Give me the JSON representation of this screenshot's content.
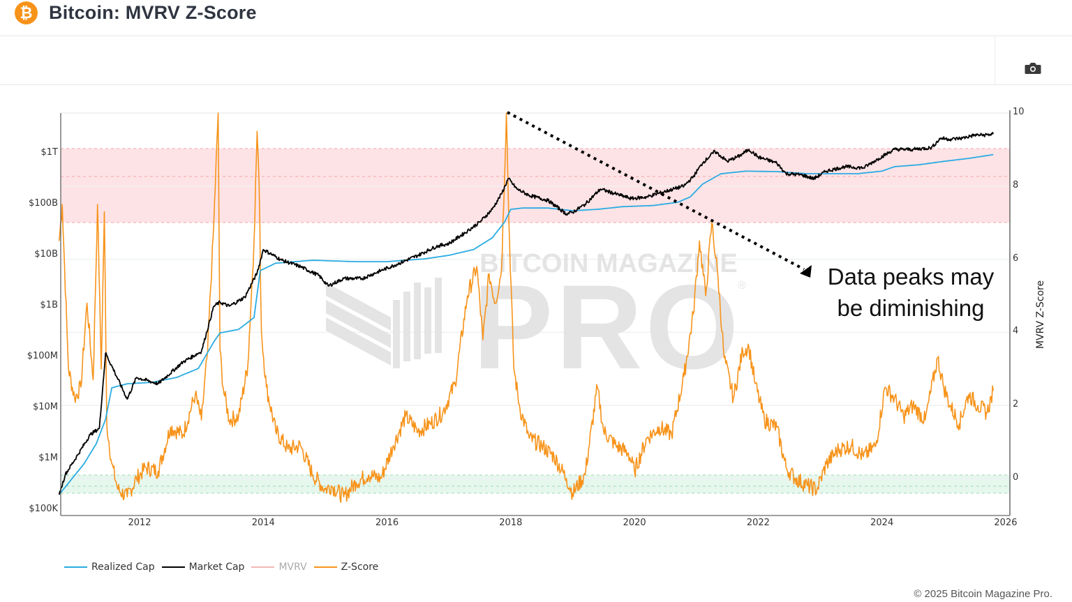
{
  "header": {
    "logo_glyph": "₿",
    "title": "Bitcoin: MVRV Z-Score"
  },
  "toolbar": {
    "screenshot_button": "camera-icon"
  },
  "annotation": {
    "line1": "Data peaks may",
    "line2": "be diminishing"
  },
  "watermark": {
    "line1": "BITCOIN MAGAZINE",
    "line2": "PRO",
    "registered": "®"
  },
  "legend": [
    {
      "label": "Realized Cap",
      "color": "#29abe2"
    },
    {
      "label": "Market Cap",
      "color": "#000000"
    },
    {
      "label": "MVRV",
      "color": "#f4a6a6"
    },
    {
      "label": "Z-Score",
      "color": "#f7931a"
    }
  ],
  "footer": {
    "copyright": "© 2025 Bitcoin Magazine Pro."
  },
  "colors": {
    "realized_cap": "#29abe2",
    "market_cap": "#000000",
    "z_score": "#f7931a",
    "red_zone": "#fde3e6",
    "green_zone": "#e6f7ee",
    "brand": "#f7931a"
  },
  "chart_data": {
    "type": "line",
    "title": "Bitcoin: MVRV Z-Score",
    "xlabel": "",
    "ylabel_left": "",
    "ylabel_right": "MVRV Z-Score",
    "x_ticks": [
      "2012",
      "2014",
      "2016",
      "2018",
      "2020",
      "2022",
      "2024",
      "2026"
    ],
    "y_left_ticks": [
      "$100K",
      "$1M",
      "$10M",
      "$100M",
      "$1B",
      "$10B",
      "$100B",
      "$1T"
    ],
    "y_left_scale": "log",
    "y_right_ticks": [
      "0",
      "2",
      "4",
      "6",
      "8",
      "10"
    ],
    "y_right_range": [
      -0.5,
      10
    ],
    "x_range": [
      2010.7,
      2026.0
    ],
    "grid": true,
    "legend_position": "bottom-left",
    "bands": [
      {
        "name": "overvalued-zone",
        "axis": "right",
        "from": 7.0,
        "to": 9.0,
        "color": "#fde3e6"
      },
      {
        "name": "undervalued-zone",
        "axis": "right",
        "from": -0.4,
        "to": 0.1,
        "color": "#e6f7ee"
      }
    ],
    "annotations": [
      {
        "type": "dotted-arrow",
        "from": [
          2018.0,
          10.0
        ],
        "to": [
          2023.8,
          5.7
        ],
        "text": "Data peaks may be diminishing"
      }
    ],
    "series": [
      {
        "name": "Z-Score",
        "axis": "right",
        "x": [
          2010.7,
          2010.75,
          2010.85,
          2010.95,
          2011.05,
          2011.15,
          2011.25,
          2011.32,
          2011.38,
          2011.43,
          2011.47,
          2011.55,
          2011.65,
          2011.8,
          2011.95,
          2012.1,
          2012.3,
          2012.5,
          2012.7,
          2012.9,
          2013.0,
          2013.1,
          2013.2,
          2013.27,
          2013.3,
          2013.35,
          2013.45,
          2013.6,
          2013.75,
          2013.85,
          2013.9,
          2013.93,
          2013.97,
          2014.05,
          2014.2,
          2014.4,
          2014.6,
          2014.8,
          2015.0,
          2015.1,
          2015.3,
          2015.5,
          2015.7,
          2015.9,
          2016.1,
          2016.3,
          2016.5,
          2016.7,
          2016.9,
          2017.1,
          2017.3,
          2017.45,
          2017.55,
          2017.65,
          2017.75,
          2017.85,
          2017.93,
          2017.97,
          2018.05,
          2018.15,
          2018.3,
          2018.5,
          2018.7,
          2018.9,
          2019.0,
          2019.2,
          2019.4,
          2019.5,
          2019.7,
          2019.9,
          2020.0,
          2020.2,
          2020.4,
          2020.6,
          2020.8,
          2020.95,
          2021.05,
          2021.15,
          2021.25,
          2021.35,
          2021.45,
          2021.6,
          2021.75,
          2021.85,
          2021.95,
          2022.1,
          2022.3,
          2022.45,
          2022.6,
          2022.8,
          2022.95,
          2023.1,
          2023.3,
          2023.5,
          2023.7,
          2023.9,
          2024.05,
          2024.2,
          2024.35,
          2024.5,
          2024.7,
          2024.9,
          2025.0,
          2025.1,
          2025.25,
          2025.4,
          2025.55,
          2025.7,
          2025.8
        ],
        "values": [
          6.5,
          7.5,
          3.0,
          2.2,
          2.5,
          4.8,
          2.7,
          7.5,
          3.0,
          7.3,
          1.5,
          0.4,
          -0.3,
          -0.5,
          0.0,
          0.3,
          0.2,
          1.4,
          1.2,
          2.3,
          1.6,
          3.5,
          7.0,
          10.0,
          3.5,
          2.5,
          1.6,
          1.7,
          3.1,
          6.5,
          9.5,
          8.2,
          4.0,
          2.5,
          1.3,
          0.8,
          0.9,
          0.1,
          -0.3,
          -0.2,
          -0.5,
          -0.1,
          0.1,
          0.0,
          0.9,
          1.7,
          1.3,
          1.5,
          1.8,
          2.6,
          5.0,
          5.8,
          3.8,
          5.6,
          4.8,
          5.7,
          10.0,
          7.0,
          3.0,
          1.9,
          1.1,
          0.9,
          0.6,
          0.0,
          -0.4,
          0.1,
          2.5,
          1.3,
          0.9,
          0.7,
          0.2,
          1.1,
          1.4,
          1.2,
          2.8,
          4.5,
          6.5,
          5.0,
          7.0,
          5.5,
          3.3,
          2.2,
          3.5,
          3.6,
          2.6,
          1.6,
          1.4,
          0.3,
          0.0,
          -0.2,
          -0.3,
          0.4,
          0.8,
          0.9,
          0.6,
          0.9,
          2.5,
          2.2,
          1.7,
          2.0,
          1.6,
          3.3,
          2.5,
          2.0,
          1.5,
          2.3,
          2.0,
          1.8,
          2.4
        ]
      },
      {
        "name": "Market Cap",
        "axis": "left",
        "unit": "USD",
        "x": [
          2010.7,
          2010.8,
          2011.0,
          2011.2,
          2011.35,
          2011.45,
          2011.6,
          2011.8,
          2011.95,
          2012.3,
          2012.7,
          2013.0,
          2013.2,
          2013.3,
          2013.45,
          2013.7,
          2013.9,
          2014.0,
          2014.3,
          2014.6,
          2014.9,
          2015.05,
          2015.3,
          2015.6,
          2015.9,
          2016.2,
          2016.5,
          2016.8,
          2017.0,
          2017.3,
          2017.5,
          2017.7,
          2017.85,
          2017.96,
          2018.1,
          2018.3,
          2018.6,
          2018.9,
          2019.0,
          2019.2,
          2019.45,
          2019.7,
          2019.95,
          2020.2,
          2020.5,
          2020.8,
          2020.95,
          2021.1,
          2021.3,
          2021.5,
          2021.7,
          2021.85,
          2022.0,
          2022.3,
          2022.45,
          2022.7,
          2022.9,
          2023.1,
          2023.4,
          2023.7,
          2023.95,
          2024.2,
          2024.5,
          2024.8,
          2024.95,
          2025.1,
          2025.3,
          2025.5,
          2025.65,
          2025.8
        ],
        "values": [
          200000.0,
          500000.0,
          1200000.0,
          3000000.0,
          4000000.0,
          120000000.0,
          50000000.0,
          15000000.0,
          40000000.0,
          30000000.0,
          80000000.0,
          130000000.0,
          1000000000.0,
          1200000000.0,
          1000000000.0,
          1500000000.0,
          4500000000.0,
          13000000000.0,
          8000000000.0,
          6000000000.0,
          4000000000.0,
          2500000000.0,
          3500000000.0,
          3500000000.0,
          5000000000.0,
          7000000000.0,
          10000000000.0,
          15000000000.0,
          17000000000.0,
          30000000000.0,
          45000000000.0,
          80000000000.0,
          160000000000.0,
          320000000000.0,
          200000000000.0,
          150000000000.0,
          120000000000.0,
          65000000000.0,
          70000000000.0,
          100000000000.0,
          200000000000.0,
          160000000000.0,
          130000000000.0,
          140000000000.0,
          180000000000.0,
          230000000000.0,
          350000000000.0,
          650000000000.0,
          1100000000000.0,
          700000000000.0,
          900000000000.0,
          1200000000000.0,
          850000000000.0,
          650000000000.0,
          400000000000.0,
          380000000000.0,
          320000000000.0,
          450000000000.0,
          550000000000.0,
          520000000000.0,
          800000000000.0,
          1200000000000.0,
          1200000000000.0,
          1300000000000.0,
          2000000000000.0,
          1900000000000.0,
          2000000000000.0,
          2300000000000.0,
          2300000000000.0,
          2400000000000.0
        ]
      },
      {
        "name": "Realized Cap",
        "axis": "left",
        "unit": "USD",
        "x": [
          2010.7,
          2010.9,
          2011.1,
          2011.3,
          2011.45,
          2011.55,
          2011.8,
          2012.2,
          2012.6,
          2012.95,
          2013.2,
          2013.3,
          2013.6,
          2013.85,
          2013.95,
          2014.2,
          2014.8,
          2015.5,
          2016.0,
          2016.6,
          2017.0,
          2017.4,
          2017.7,
          2017.9,
          2018.0,
          2018.2,
          2018.6,
          2019.0,
          2019.4,
          2019.8,
          2020.3,
          2020.7,
          2020.9,
          2021.1,
          2021.4,
          2021.8,
          2022.3,
          2022.8,
          2023.2,
          2023.6,
          2024.0,
          2024.2,
          2024.6,
          2025.0,
          2025.4,
          2025.8
        ],
        "values": [
          200000.0,
          400000.0,
          800000.0,
          2000000.0,
          6000000.0,
          25000000.0,
          30000000.0,
          32000000.0,
          40000000.0,
          60000000.0,
          200000000.0,
          300000000.0,
          350000000.0,
          600000000.0,
          5000000000.0,
          7000000000.0,
          8000000000.0,
          7500000000.0,
          7500000000.0,
          8500000000.0,
          10000000000.0,
          13000000000.0,
          22000000000.0,
          45000000000.0,
          80000000000.0,
          85000000000.0,
          85000000000.0,
          75000000000.0,
          80000000000.0,
          90000000000.0,
          95000000000.0,
          110000000000.0,
          140000000000.0,
          250000000000.0,
          400000000000.0,
          450000000000.0,
          440000000000.0,
          400000000000.0,
          400000000000.0,
          400000000000.0,
          450000000000.0,
          550000000000.0,
          600000000000.0,
          700000000000.0,
          800000000000.0,
          950000000000.0
        ]
      }
    ]
  }
}
